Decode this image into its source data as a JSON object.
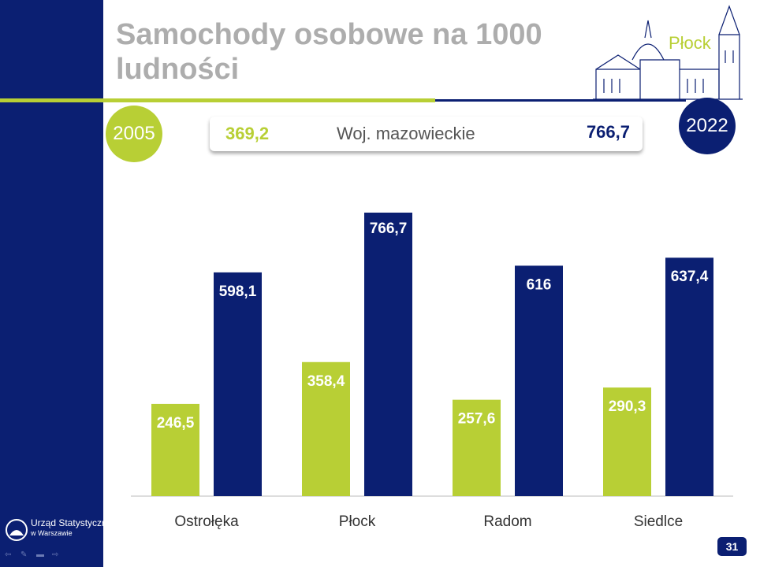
{
  "slide": {
    "title": "Samochody osobowe na 1000 ludności",
    "city_label": "Płock",
    "page_number": "31"
  },
  "timeline": {
    "start_year": "2005",
    "end_year": "2022",
    "start_color": "#b8cf35",
    "end_color": "#0b1f72"
  },
  "summary": {
    "region": "Woj. mazowieckie",
    "value_2005": "369,2",
    "value_2022": "766,7"
  },
  "logo": {
    "line1": "Urząd Statystyczny",
    "line2": "w Warszawie"
  },
  "nav": {
    "icons": [
      "back-arrow-icon",
      "pen-icon",
      "menu-icon",
      "forward-arrow-icon"
    ]
  },
  "chart_data": {
    "type": "bar",
    "categories": [
      "Ostrołęka",
      "Płock",
      "Radom",
      "Siedlce"
    ],
    "series": [
      {
        "name": "2005",
        "color": "#b8cf35",
        "values": [
          246.5,
          358.4,
          257.6,
          290.3
        ],
        "labels": [
          "246,5",
          "358,4",
          "257,6",
          "290,3"
        ]
      },
      {
        "name": "2022",
        "color": "#0b1f72",
        "values": [
          598.1,
          766.7,
          616,
          637.4
        ],
        "labels": [
          "598,1",
          "766,7",
          "616",
          "637,4"
        ]
      }
    ],
    "ylim": [
      0,
      800
    ],
    "grid": false,
    "legend": "none"
  }
}
